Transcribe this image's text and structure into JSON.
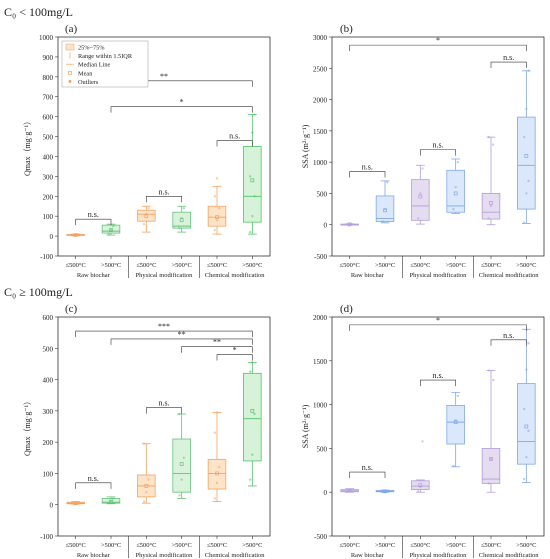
{
  "section_labels": [
    "C₀ < 100mg/L",
    "C₀ ≥ 100mg/L"
  ],
  "legend": {
    "items": [
      {
        "label": "25%~75%",
        "icon": "box-swatch"
      },
      {
        "label": "Range within 1.5IQR",
        "icon": "whisker-line"
      },
      {
        "label": "Median Line",
        "icon": "median-line"
      },
      {
        "label": "Mean",
        "icon": "mean-dot"
      },
      {
        "label": "Outliers",
        "icon": "outlier-diamond"
      }
    ]
  },
  "colors": {
    "raw": {
      "fill": "#fbe3cf",
      "stroke": "#f4a261"
    },
    "phys_orange": {
      "fill": "#fde3c8",
      "stroke": "#f4a261"
    },
    "phys_green": {
      "fill": "#d9f2dc",
      "stroke": "#66c27a"
    },
    "chem_orange": {
      "fill": "#fde3c8",
      "stroke": "#f4a261"
    },
    "chem_green": {
      "fill": "#d6f3da",
      "stroke": "#4fc464"
    },
    "purple": {
      "fill": "#e6dcef",
      "stroke": "#b39ddb"
    },
    "blue": {
      "fill": "#dbe8fb",
      "stroke": "#7fa7ea"
    }
  },
  "chart_data": [
    {
      "panel": "(a)",
      "type": "box",
      "ylabel": "Qmax（mg·g⁻¹）",
      "ylim": [
        -100,
        1000
      ],
      "yticks": [
        -100,
        0,
        100,
        200,
        300,
        400,
        500,
        600,
        700,
        800,
        900,
        1000
      ],
      "ticklabels": [
        "≤500°C",
        ">500°C",
        "≤500°C",
        ">500°C",
        "≤500°C",
        ">500°C"
      ],
      "groups": [
        "Raw biochar",
        "Physical modification",
        "Chemical modification"
      ],
      "boxes": [
        {
          "q1": 3,
          "median": 5,
          "q3": 8,
          "wlo": 2,
          "whi": 10,
          "mean": 5,
          "color": "raw",
          "points": [
            3,
            5,
            8
          ]
        },
        {
          "q1": 15,
          "median": 25,
          "q3": 55,
          "wlo": 5,
          "whi": 60,
          "mean": 30,
          "color": "phys_green",
          "points": [
            10,
            30,
            50
          ]
        },
        {
          "q1": 75,
          "median": 110,
          "q3": 130,
          "wlo": 20,
          "whi": 150,
          "mean": 100,
          "color": "phys_orange",
          "points": [
            60,
            110,
            140
          ]
        },
        {
          "q1": 40,
          "median": 50,
          "q3": 120,
          "wlo": 20,
          "whi": 150,
          "mean": 80,
          "color": "phys_green",
          "points": [
            40,
            90,
            140
          ]
        },
        {
          "q1": 50,
          "median": 95,
          "q3": 150,
          "wlo": 10,
          "whi": 250,
          "mean": 95,
          "color": "chem_orange",
          "points": [
            30,
            80,
            140,
            200,
            290
          ]
        },
        {
          "q1": 70,
          "median": 200,
          "q3": 450,
          "wlo": 10,
          "whi": 610,
          "mean": 280,
          "color": "chem_green",
          "points": [
            20,
            100,
            200,
            300,
            520,
            610
          ]
        }
      ],
      "annotations": [
        {
          "from": 0,
          "to": 1,
          "text": "n.s.",
          "y": 85
        },
        {
          "from": 2,
          "to": 3,
          "text": "n.s.",
          "y": 200
        },
        {
          "from": 4,
          "to": 5,
          "text": "n.s.",
          "y": 480
        },
        {
          "from": 1,
          "to": 5,
          "text": "*",
          "y": 650
        },
        {
          "from": 0,
          "to": 5,
          "text": "**",
          "y": 780
        }
      ]
    },
    {
      "panel": "(b)",
      "type": "box",
      "ylabel": "SSA (m²·g⁻¹)",
      "ylim": [
        -500,
        3000
      ],
      "yticks": [
        -500,
        0,
        500,
        1000,
        1500,
        2000,
        2500,
        3000
      ],
      "ticklabels": [
        "≤500°C",
        ">500°C",
        "≤500°C",
        ">500°C",
        "≤500°C",
        ">500°C"
      ],
      "groups": [
        "Raw biochar",
        "Physical modification",
        "Chemical modification"
      ],
      "boxes": [
        {
          "q1": 0,
          "median": 5,
          "q3": 10,
          "wlo": 0,
          "whi": 15,
          "mean": 5,
          "color": "purple",
          "points": [
            0,
            5
          ]
        },
        {
          "q1": 50,
          "median": 100,
          "q3": 460,
          "wlo": 30,
          "whi": 700,
          "mean": 230,
          "color": "blue",
          "points": [
            50,
            250,
            680
          ]
        },
        {
          "q1": 70,
          "median": 300,
          "q3": 720,
          "wlo": 10,
          "whi": 950,
          "mean": 450,
          "color": "purple",
          "points": [
            100,
            500,
            900
          ]
        },
        {
          "q1": 200,
          "median": 300,
          "q3": 870,
          "wlo": 180,
          "whi": 1050,
          "mean": 500,
          "color": "blue",
          "points": [
            250,
            600,
            1000
          ]
        },
        {
          "q1": 90,
          "median": 200,
          "q3": 500,
          "wlo": 0,
          "whi": 1400,
          "mean": 350,
          "color": "purple",
          "points": [
            100,
            300,
            1280,
            1400
          ]
        },
        {
          "q1": 250,
          "median": 950,
          "q3": 1720,
          "wlo": 20,
          "whi": 2460,
          "mean": 1100,
          "color": "blue",
          "points": [
            30,
            500,
            700,
            1400,
            1850,
            2460
          ]
        }
      ],
      "annotations": [
        {
          "from": 0,
          "to": 1,
          "text": "n.s.",
          "y": 850
        },
        {
          "from": 2,
          "to": 3,
          "text": "n.s.",
          "y": 1200
        },
        {
          "from": 4,
          "to": 5,
          "text": "n.s.",
          "y": 2600
        },
        {
          "from": 0,
          "to": 5,
          "text": "*",
          "y": 2870
        }
      ]
    },
    {
      "panel": "(c)",
      "type": "box",
      "ylabel": "Qmax（mg·g⁻¹）",
      "ylim": [
        -100,
        600
      ],
      "yticks": [
        -100,
        0,
        100,
        200,
        300,
        400,
        500,
        600
      ],
      "ticklabels": [
        "≤500°C",
        ">500°C",
        "≤500°C",
        ">500°C",
        "≤500°C",
        ">500°C"
      ],
      "groups": [
        "Raw biochar",
        "Physical modification",
        "Chemical modification"
      ],
      "boxes": [
        {
          "q1": 3,
          "median": 5,
          "q3": 8,
          "wlo": 2,
          "whi": 10,
          "mean": 5,
          "color": "raw",
          "points": [
            3,
            6
          ]
        },
        {
          "q1": 5,
          "median": 8,
          "q3": 20,
          "wlo": 3,
          "whi": 25,
          "mean": 10,
          "color": "phys_green",
          "points": [
            5,
            12,
            20
          ]
        },
        {
          "q1": 25,
          "median": 60,
          "q3": 95,
          "wlo": 5,
          "whi": 195,
          "mean": 60,
          "color": "phys_orange",
          "points": [
            10,
            40,
            80,
            195
          ]
        },
        {
          "q1": 40,
          "median": 100,
          "q3": 210,
          "wlo": 20,
          "whi": 290,
          "mean": 130,
          "color": "phys_green",
          "points": [
            30,
            80,
            150,
            290
          ]
        },
        {
          "q1": 50,
          "median": 100,
          "q3": 145,
          "wlo": 10,
          "whi": 295,
          "mean": 100,
          "color": "chem_orange",
          "points": [
            20,
            70,
            120,
            230,
            295
          ]
        },
        {
          "q1": 140,
          "median": 275,
          "q3": 420,
          "wlo": 60,
          "whi": 455,
          "mean": 300,
          "color": "chem_green",
          "points": [
            80,
            160,
            290,
            425,
            455
          ]
        }
      ],
      "annotations": [
        {
          "from": 0,
          "to": 1,
          "text": "n.s.",
          "y": 70
        },
        {
          "from": 2,
          "to": 3,
          "text": "n.s.",
          "y": 310
        },
        {
          "from": 4,
          "to": 5,
          "text": "*",
          "y": 480
        },
        {
          "from": 3,
          "to": 5,
          "text": "**",
          "y": 505
        },
        {
          "from": 1,
          "to": 5,
          "text": "**",
          "y": 530
        },
        {
          "from": 0,
          "to": 5,
          "text": "***",
          "y": 555
        }
      ]
    },
    {
      "panel": "(d)",
      "type": "box",
      "ylabel": "SSA (m²·g⁻¹)",
      "ylim": [
        -500,
        2000
      ],
      "yticks": [
        -500,
        0,
        500,
        1000,
        1500,
        2000
      ],
      "ticklabels": [
        "≤500°C",
        ">500°C",
        "≤500°C",
        ">500°C",
        "≤500°C",
        ">500°C"
      ],
      "groups": [
        "Raw biochar",
        "Physical modification",
        "Chemical modification"
      ],
      "boxes": [
        {
          "q1": 5,
          "median": 15,
          "q3": 30,
          "wlo": 0,
          "whi": 40,
          "mean": 20,
          "color": "purple",
          "points": [
            5,
            30
          ]
        },
        {
          "q1": 5,
          "median": 10,
          "q3": 20,
          "wlo": 0,
          "whi": 25,
          "mean": 10,
          "color": "blue",
          "points": [
            5,
            20
          ]
        },
        {
          "q1": 30,
          "median": 70,
          "q3": 130,
          "wlo": 0,
          "whi": 140,
          "mean": 80,
          "color": "purple",
          "points": [
            10,
            60,
            580
          ]
        },
        {
          "q1": 550,
          "median": 800,
          "q3": 990,
          "wlo": 290,
          "whi": 1140,
          "mean": 800,
          "color": "blue",
          "points": [
            300,
            820,
            1100
          ]
        },
        {
          "q1": 100,
          "median": 150,
          "q3": 500,
          "wlo": 0,
          "whi": 1390,
          "mean": 380,
          "color": "purple",
          "points": [
            100,
            380,
            1280,
            1390
          ]
        },
        {
          "q1": 320,
          "median": 580,
          "q3": 1240,
          "wlo": 110,
          "whi": 1860,
          "mean": 750,
          "color": "blue",
          "points": [
            150,
            400,
            700,
            950,
            1400,
            1700
          ]
        }
      ],
      "annotations": [
        {
          "from": 0,
          "to": 1,
          "text": "n.s.",
          "y": 230
        },
        {
          "from": 2,
          "to": 3,
          "text": "n.s.",
          "y": 1280
        },
        {
          "from": 4,
          "to": 5,
          "text": "n.s.",
          "y": 1740
        },
        {
          "from": 0,
          "to": 5,
          "text": "*",
          "y": 1910
        }
      ]
    }
  ]
}
